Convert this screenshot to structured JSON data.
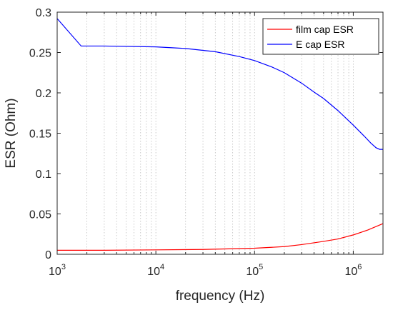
{
  "chart_data": {
    "type": "line",
    "xlabel": "frequency (Hz)",
    "ylabel": "ESR (Ohm)",
    "xscale": "log",
    "xlim": [
      1000,
      2000000
    ],
    "ylim": [
      0,
      0.3
    ],
    "grid": "x-major-and-minor-dotted",
    "legend_position": "top-right",
    "x_ticks": [
      {
        "value": 1000,
        "base": "10",
        "exp": "3"
      },
      {
        "value": 10000,
        "base": "10",
        "exp": "4"
      },
      {
        "value": 100000,
        "base": "10",
        "exp": "5"
      },
      {
        "value": 1000000,
        "base": "10",
        "exp": "6"
      }
    ],
    "y_ticks": [
      {
        "value": 0,
        "label": "0"
      },
      {
        "value": 0.05,
        "label": "0.05"
      },
      {
        "value": 0.1,
        "label": "0.1"
      },
      {
        "value": 0.15,
        "label": "0.15"
      },
      {
        "value": 0.2,
        "label": "0.2"
      },
      {
        "value": 0.25,
        "label": "0.25"
      },
      {
        "value": 0.3,
        "label": "0.3"
      }
    ],
    "series": [
      {
        "name": "film cap ESR",
        "color": "#ff0000",
        "x": [
          1000,
          3000,
          10000,
          30000,
          100000,
          200000,
          300000,
          500000,
          700000,
          1000000,
          1400000,
          2000000
        ],
        "y": [
          0.005,
          0.005,
          0.0055,
          0.006,
          0.0075,
          0.0095,
          0.012,
          0.016,
          0.019,
          0.024,
          0.03,
          0.038
        ]
      },
      {
        "name": "E cap ESR",
        "color": "#0000ff",
        "x": [
          1000,
          1750,
          3000,
          10000,
          20000,
          40000,
          70000,
          100000,
          150000,
          200000,
          300000,
          400000,
          500000,
          700000,
          1000000,
          1300000,
          1500000,
          1700000,
          1850000,
          2000000
        ],
        "y": [
          0.292,
          0.258,
          0.258,
          0.257,
          0.255,
          0.251,
          0.245,
          0.24,
          0.232,
          0.225,
          0.212,
          0.201,
          0.193,
          0.178,
          0.16,
          0.146,
          0.138,
          0.132,
          0.13,
          0.13
        ]
      }
    ]
  }
}
